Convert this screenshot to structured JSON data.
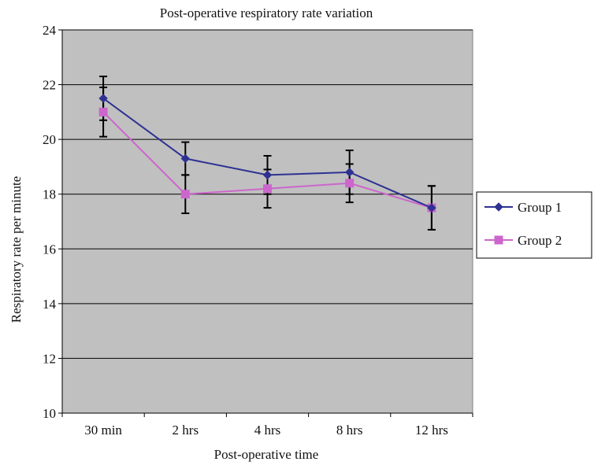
{
  "chart_data": {
    "type": "line",
    "title": "Post-operative respiratory rate variation",
    "xlabel": "Post-operative time",
    "ylabel": "Respiratory rate per minute",
    "categories": [
      "30 min",
      "2 hrs",
      "4 hrs",
      "8 hrs",
      "12 hrs"
    ],
    "ylim": [
      10,
      24
    ],
    "yticks": [
      10,
      12,
      14,
      16,
      18,
      20,
      22,
      24
    ],
    "grid": true,
    "legend_position": "right",
    "series": [
      {
        "name": "Group 1",
        "color": "#2e3192",
        "marker": "diamond",
        "values": [
          21.5,
          19.3,
          18.7,
          18.8,
          17.5
        ],
        "error_low": [
          20.7,
          18.7,
          18.0,
          18.0,
          16.7
        ],
        "error_high": [
          22.3,
          19.9,
          19.4,
          19.6,
          18.3
        ]
      },
      {
        "name": "Group 2",
        "color": "#cc66cc",
        "marker": "square",
        "values": [
          21.0,
          18.0,
          18.2,
          18.4,
          17.5
        ],
        "error_low": [
          20.1,
          17.3,
          17.5,
          17.7,
          16.7
        ],
        "error_high": [
          21.9,
          18.7,
          18.9,
          19.1,
          18.3
        ]
      }
    ],
    "plot_background": "#c0c0c0"
  }
}
